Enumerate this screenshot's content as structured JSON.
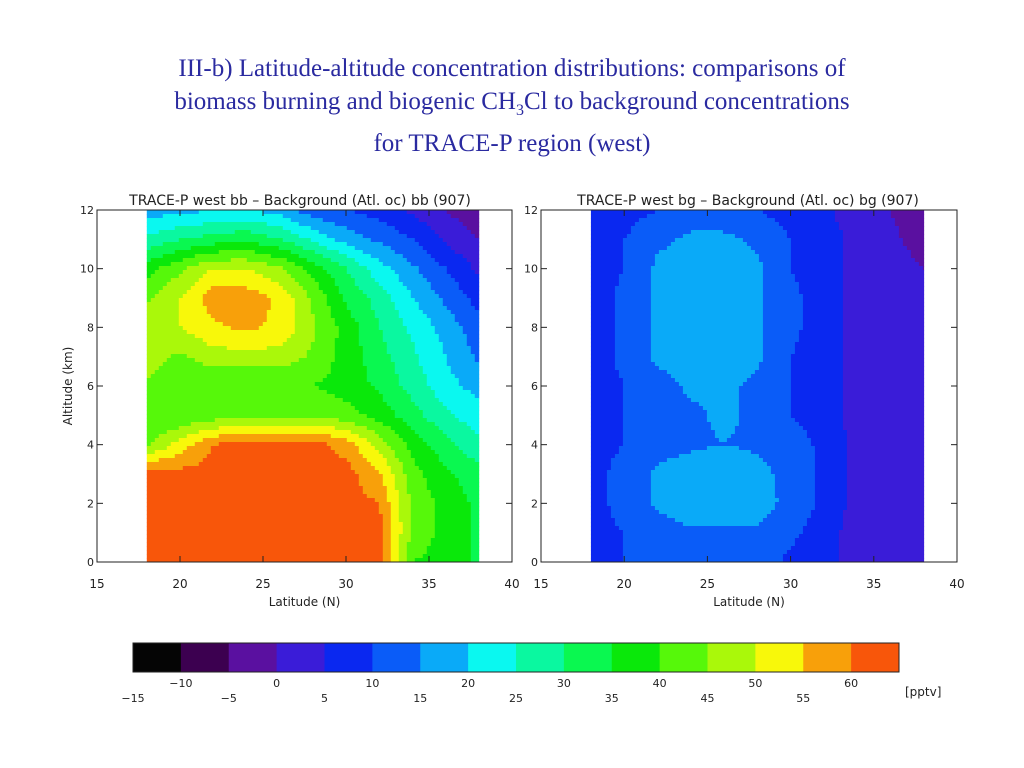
{
  "slide": {
    "title_line1": "III-b)  Latitude-altitude concentration distributions: comparisons of",
    "title_line2_prefix": "biomass burning and biogenic CH",
    "title_line2_sub": "3",
    "title_line2_suffix": "Cl to background concentrations",
    "title_line3": "for TRACE-P region (west)"
  },
  "chart_data": [
    {
      "type": "heatmap",
      "title": "TRACE-P west bb – Background (Atl. oc) bb (907)",
      "xlabel": "Latitude (N)",
      "ylabel": "Altitude (km)",
      "xlim": [
        15,
        40
      ],
      "ylim": [
        0,
        12
      ],
      "data_xrange": [
        18,
        38
      ],
      "xticks": [
        15,
        20,
        25,
        30,
        35,
        40
      ],
      "yticks": [
        0,
        2,
        4,
        6,
        8,
        10,
        12
      ],
      "units": "pptv",
      "x": [
        18,
        20,
        22,
        24,
        26,
        28,
        30,
        32,
        34,
        36,
        38
      ],
      "y": [
        0,
        1,
        2,
        3,
        4,
        5,
        6,
        7,
        8,
        9,
        10,
        11,
        12
      ],
      "z": [
        [
          62,
          60,
          62,
          62,
          62,
          62,
          62,
          62,
          40,
          38,
          34
        ],
        [
          62,
          62,
          62,
          62,
          62,
          62,
          62,
          62,
          44,
          38,
          34
        ],
        [
          62,
          62,
          62,
          62,
          62,
          62,
          62,
          60,
          44,
          38,
          34
        ],
        [
          62,
          62,
          62,
          62,
          62,
          62,
          62,
          56,
          42,
          36,
          32
        ],
        [
          44,
          52,
          60,
          62,
          62,
          62,
          58,
          48,
          38,
          32,
          26
        ],
        [
          40,
          40,
          42,
          44,
          44,
          44,
          42,
          38,
          32,
          26,
          22
        ],
        [
          44,
          40,
          40,
          40,
          40,
          40,
          38,
          34,
          28,
          22,
          18
        ],
        [
          48,
          44,
          48,
          48,
          48,
          44,
          38,
          32,
          26,
          20,
          14
        ],
        [
          48,
          50,
          54,
          56,
          54,
          46,
          38,
          30,
          24,
          18,
          12
        ],
        [
          44,
          50,
          58,
          58,
          54,
          44,
          34,
          28,
          20,
          14,
          8
        ],
        [
          38,
          44,
          50,
          50,
          46,
          38,
          30,
          22,
          16,
          10,
          4
        ],
        [
          26,
          30,
          32,
          34,
          30,
          24,
          18,
          14,
          10,
          4,
          0
        ],
        [
          18,
          18,
          20,
          20,
          18,
          12,
          10,
          8,
          4,
          0,
          -4
        ]
      ]
    },
    {
      "type": "heatmap",
      "title": "TRACE-P west bg – Background (Atl. oc) bg (907)",
      "xlabel": "Latitude (N)",
      "ylabel": "",
      "xlim": [
        15,
        40
      ],
      "ylim": [
        0,
        12
      ],
      "data_xrange": [
        18,
        38
      ],
      "xticks": [
        15,
        20,
        25,
        30,
        35,
        40
      ],
      "yticks": [
        0,
        2,
        4,
        6,
        8,
        10,
        12
      ],
      "units": "pptv",
      "x": [
        18,
        20,
        22,
        24,
        26,
        28,
        30,
        32,
        34,
        36,
        38
      ],
      "y": [
        0,
        1,
        2,
        3,
        4,
        5,
        6,
        7,
        8,
        9,
        10,
        11,
        12
      ],
      "z": [
        [
          8,
          10,
          12,
          12,
          12,
          12,
          9,
          7,
          2,
          2,
          2
        ],
        [
          8,
          10,
          12,
          14,
          14,
          14,
          11,
          8,
          2,
          2,
          2
        ],
        [
          8,
          12,
          16,
          19,
          20,
          18,
          13,
          9,
          3,
          2,
          2
        ],
        [
          8,
          12,
          16,
          18,
          19,
          17,
          13,
          9,
          3,
          2,
          2
        ],
        [
          8,
          10,
          13,
          14,
          15,
          14,
          12,
          9,
          3,
          2,
          2
        ],
        [
          8,
          10,
          12,
          14,
          16,
          14,
          10,
          8,
          3,
          2,
          2
        ],
        [
          8,
          10,
          13,
          16,
          16,
          14,
          10,
          8,
          3,
          2,
          1
        ],
        [
          8,
          11,
          16,
          17,
          17,
          16,
          10,
          8,
          3,
          2,
          1
        ],
        [
          8,
          11,
          16,
          17,
          17,
          16,
          11,
          8,
          3,
          2,
          1
        ],
        [
          8,
          11,
          16,
          17,
          17,
          16,
          11,
          8,
          3,
          2,
          0
        ],
        [
          8,
          10,
          16,
          17,
          17,
          16,
          10,
          8,
          3,
          2,
          0
        ],
        [
          8,
          10,
          14,
          16,
          16,
          14,
          10,
          8,
          3,
          1,
          -2
        ],
        [
          6,
          8,
          10,
          12,
          12,
          10,
          8,
          6,
          2,
          0,
          -3
        ]
      ]
    }
  ],
  "colorbar": {
    "units": "[pptv]",
    "min": -15,
    "max": 65,
    "step": 5,
    "colors": [
      "#050505",
      "#3c0050",
      "#5a10a0",
      "#3a1cd8",
      "#0a28f0",
      "#0a5cf8",
      "#0aaaf8",
      "#0af8f0",
      "#0af8a0",
      "#0af850",
      "#0ae80a",
      "#56f80a",
      "#aaf80a",
      "#f8f80a",
      "#f8a00a",
      "#f8560a"
    ],
    "labels_top": [
      "−10",
      "0",
      "10",
      "20",
      "30",
      "40",
      "50",
      "60"
    ],
    "labels_bottom": [
      "−15",
      "−5",
      "5",
      "15",
      "25",
      "35",
      "45",
      "55"
    ]
  }
}
